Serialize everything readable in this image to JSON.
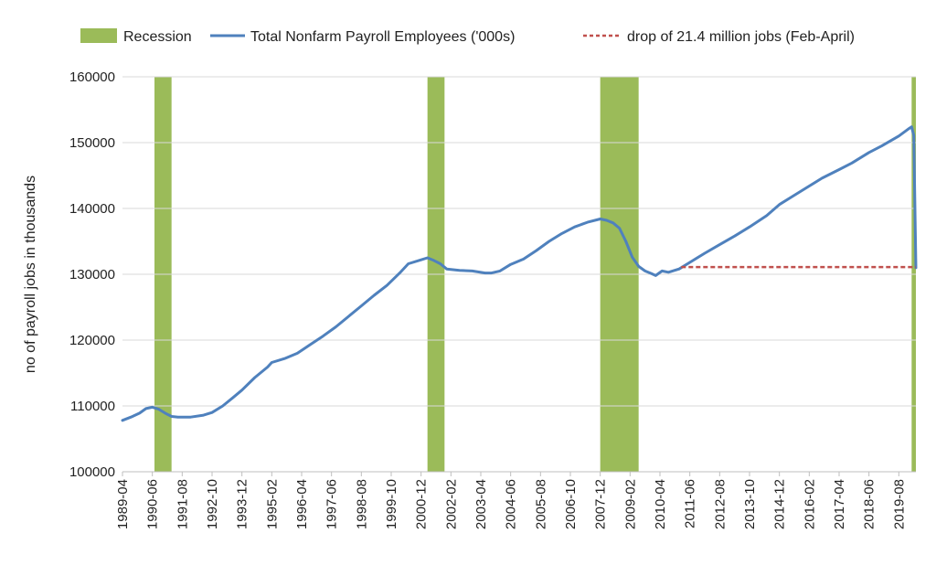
{
  "chart_data": {
    "type": "line",
    "title": "",
    "xlabel": "",
    "ylabel": "no of payroll jobs in thousands",
    "ylim": [
      100000,
      160000
    ],
    "yticks": [
      "100000",
      "110000",
      "120000",
      "130000",
      "140000",
      "150000",
      "160000"
    ],
    "xlim": [
      "1989-04",
      "2020-04"
    ],
    "xticks": [
      "1989-04",
      "1990-06",
      "1991-08",
      "1992-10",
      "1993-12",
      "1995-02",
      "1996-04",
      "1997-06",
      "1998-08",
      "1999-10",
      "2000-12",
      "2002-02",
      "2003-04",
      "2004-06",
      "2005-08",
      "2006-10",
      "2007-12",
      "2009-02",
      "2010-04",
      "2011-06",
      "2012-08",
      "2013-10",
      "2014-12",
      "2016-02",
      "2017-04",
      "2018-06",
      "2019-08"
    ],
    "grid": "horizontal",
    "legend_position": "top",
    "legend": [
      {
        "label": "Recession",
        "kind": "area",
        "color": "#9bbb59"
      },
      {
        "label": "Total Nonfarm Payroll Employees ('000s)",
        "kind": "line",
        "color": "#4f81bd"
      },
      {
        "label": "drop of 21.4 million jobs (Feb-April)",
        "kind": "dashed",
        "color": "#c0504d"
      }
    ],
    "recessions": [
      {
        "start": "1990-07",
        "end": "1991-03"
      },
      {
        "start": "2001-03",
        "end": "2001-11"
      },
      {
        "start": "2007-12",
        "end": "2009-06"
      },
      {
        "start": "2020-02",
        "end": "2020-04"
      }
    ],
    "series": [
      {
        "name": "Total Nonfarm Payroll Employees ('000s)",
        "color": "#4f81bd",
        "style": "solid",
        "points": [
          [
            "1989-04",
            107800
          ],
          [
            "1989-08",
            108300
          ],
          [
            "1989-12",
            108900
          ],
          [
            "1990-03",
            109600
          ],
          [
            "1990-06",
            109800
          ],
          [
            "1990-09",
            109500
          ],
          [
            "1990-12",
            108900
          ],
          [
            "1991-03",
            108400
          ],
          [
            "1991-06",
            108300
          ],
          [
            "1991-12",
            108300
          ],
          [
            "1992-06",
            108600
          ],
          [
            "1992-10",
            109000
          ],
          [
            "1993-03",
            110000
          ],
          [
            "1993-08",
            111300
          ],
          [
            "1993-12",
            112400
          ],
          [
            "1994-06",
            114300
          ],
          [
            "1994-12",
            115900
          ],
          [
            "1995-02",
            116600
          ],
          [
            "1995-08",
            117200
          ],
          [
            "1996-02",
            118000
          ],
          [
            "1996-08",
            119300
          ],
          [
            "1997-02",
            120600
          ],
          [
            "1997-08",
            122000
          ],
          [
            "1998-02",
            123600
          ],
          [
            "1998-08",
            125200
          ],
          [
            "1999-02",
            126800
          ],
          [
            "1999-08",
            128300
          ],
          [
            "2000-02",
            130200
          ],
          [
            "2000-06",
            131600
          ],
          [
            "2000-12",
            132200
          ],
          [
            "2001-03",
            132500
          ],
          [
            "2001-06",
            132100
          ],
          [
            "2001-09",
            131600
          ],
          [
            "2001-12",
            130800
          ],
          [
            "2002-06",
            130600
          ],
          [
            "2002-12",
            130500
          ],
          [
            "2003-06",
            130200
          ],
          [
            "2003-09",
            130200
          ],
          [
            "2004-01",
            130500
          ],
          [
            "2004-06",
            131500
          ],
          [
            "2004-12",
            132300
          ],
          [
            "2005-06",
            133600
          ],
          [
            "2005-12",
            135000
          ],
          [
            "2006-06",
            136200
          ],
          [
            "2006-12",
            137200
          ],
          [
            "2007-06",
            137900
          ],
          [
            "2007-12",
            138400
          ],
          [
            "2008-03",
            138200
          ],
          [
            "2008-06",
            137800
          ],
          [
            "2008-09",
            137000
          ],
          [
            "2008-12",
            135000
          ],
          [
            "2009-03",
            132600
          ],
          [
            "2009-06",
            131200
          ],
          [
            "2009-09",
            130500
          ],
          [
            "2009-12",
            130100
          ],
          [
            "2010-02",
            129800
          ],
          [
            "2010-05",
            130500
          ],
          [
            "2010-08",
            130300
          ],
          [
            "2011-01",
            130800
          ],
          [
            "2011-06",
            131800
          ],
          [
            "2012-01",
            133200
          ],
          [
            "2012-08",
            134500
          ],
          [
            "2013-03",
            135800
          ],
          [
            "2013-10",
            137200
          ],
          [
            "2014-06",
            138900
          ],
          [
            "2014-12",
            140600
          ],
          [
            "2015-06",
            141800
          ],
          [
            "2016-02",
            143400
          ],
          [
            "2016-08",
            144600
          ],
          [
            "2017-04",
            145900
          ],
          [
            "2017-10",
            146900
          ],
          [
            "2018-06",
            148500
          ],
          [
            "2018-12",
            149500
          ],
          [
            "2019-08",
            151000
          ],
          [
            "2020-01",
            152200
          ],
          [
            "2020-02",
            152400
          ],
          [
            "2020-03",
            151100
          ],
          [
            "2020-04",
            131000
          ]
        ]
      },
      {
        "name": "drop of 21.4 million jobs (Feb-April)",
        "color": "#c0504d",
        "style": "dashed",
        "points": [
          [
            "2011-02",
            131100
          ],
          [
            "2020-04",
            131100
          ]
        ]
      }
    ]
  }
}
